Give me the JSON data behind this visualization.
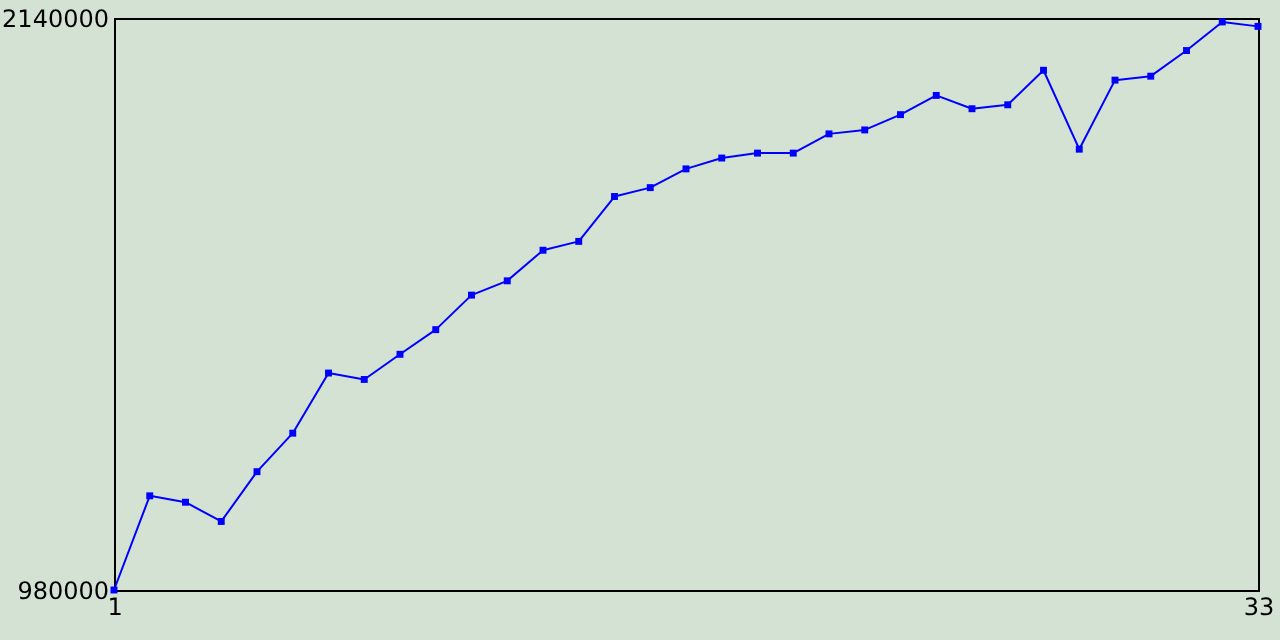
{
  "chart_data": {
    "type": "line",
    "x": [
      1,
      2,
      3,
      4,
      5,
      6,
      7,
      8,
      9,
      10,
      11,
      12,
      13,
      14,
      15,
      16,
      17,
      18,
      19,
      20,
      21,
      22,
      23,
      24,
      25,
      26,
      27,
      28,
      29,
      30,
      31,
      32,
      33
    ],
    "series": [
      {
        "color": "#0000ff",
        "values": [
          980000,
          1171000,
          1158000,
          1119000,
          1220000,
          1298000,
          1420000,
          1407000,
          1458000,
          1508000,
          1578000,
          1607000,
          1669000,
          1687000,
          1778000,
          1796000,
          1834000,
          1856000,
          1866000,
          1866000,
          1905000,
          1913000,
          1944000,
          1983000,
          1956000,
          1964000,
          2034000,
          1874000,
          2014000,
          2022000,
          2074000,
          2132000,
          2123000
        ]
      }
    ],
    "xlim": [
      1,
      33
    ],
    "xticks": [
      1,
      33
    ],
    "ylim": [
      980000,
      2140000
    ],
    "yticks": [
      980000,
      2140000
    ],
    "grid": false,
    "marker": "square",
    "line_style": "solid"
  }
}
